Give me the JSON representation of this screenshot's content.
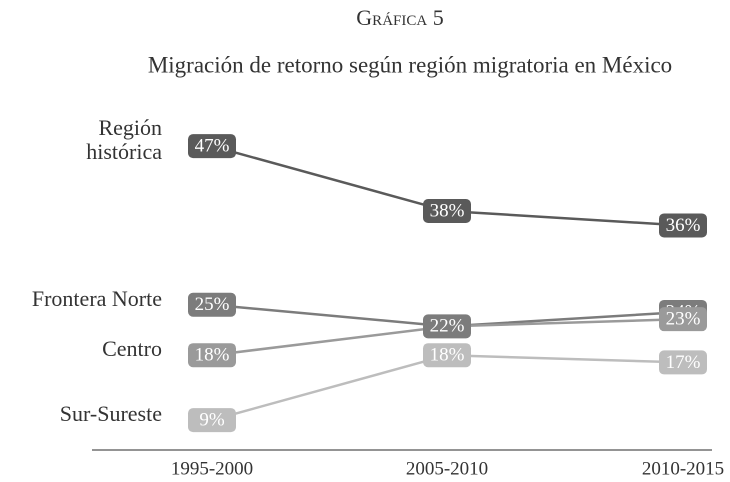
{
  "chart_data": {
    "type": "line",
    "title": "Gráfica 5",
    "subtitle": "Migración de retorno según región migratoria en México",
    "categories": [
      "1995-2000",
      "2005-2010",
      "2010-2015"
    ],
    "series": [
      {
        "name": "Región histórica",
        "color": "#5a5a5a",
        "values": [
          47,
          38,
          36
        ],
        "value_labels": [
          "47%",
          "38%",
          "36%"
        ]
      },
      {
        "name": "Frontera Norte",
        "color": "#7c7c7c",
        "values": [
          25,
          22,
          24
        ],
        "value_labels": [
          "25%",
          "22%",
          "24%"
        ]
      },
      {
        "name": "Centro",
        "color": "#9a9a9a",
        "values": [
          18,
          22,
          23
        ],
        "value_labels": [
          "18%",
          null,
          "23%"
        ]
      },
      {
        "name": "Sur-Sureste",
        "color": "#bdbdbd",
        "values": [
          9,
          18,
          17
        ],
        "value_labels": [
          "9%",
          "18%",
          "17%"
        ]
      }
    ]
  }
}
